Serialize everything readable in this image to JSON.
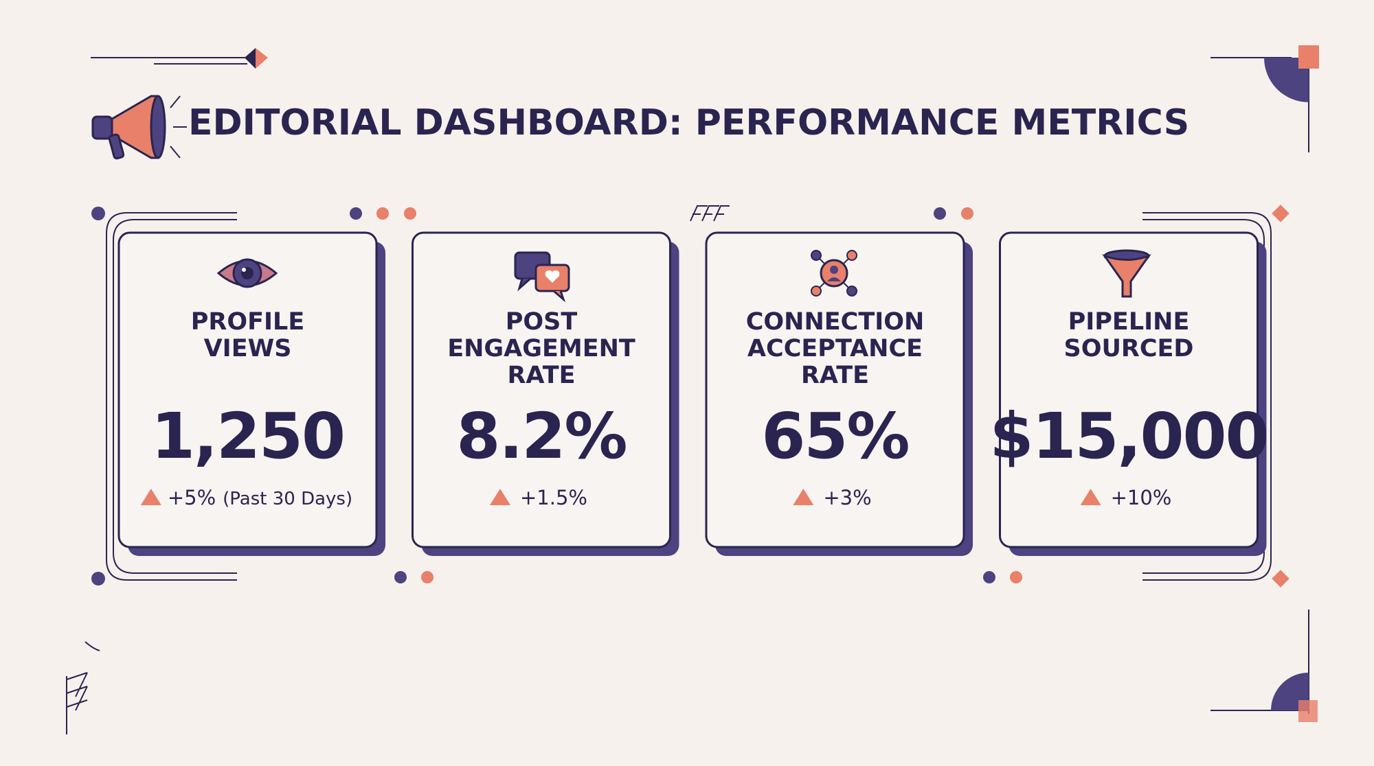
{
  "header": {
    "title": "EDITORIAL DASHBOARD: PERFORMANCE METRICS"
  },
  "cards": [
    {
      "label": [
        "PROFILE",
        "VIEWS"
      ],
      "value": "1,250",
      "change": "+5%",
      "note": "(Past 30 Days)"
    },
    {
      "label": [
        "POST",
        "ENGAGEMENT",
        "RATE"
      ],
      "value": "8.2%",
      "change": "+1.5%"
    },
    {
      "label": [
        "CONNECTION",
        "ACCEPTANCE",
        "RATE"
      ],
      "value": "65%",
      "change": "+3%"
    },
    {
      "label": [
        "PIPELINE",
        "SOURCED"
      ],
      "value": "$15,000",
      "change": "+10%"
    }
  ]
}
